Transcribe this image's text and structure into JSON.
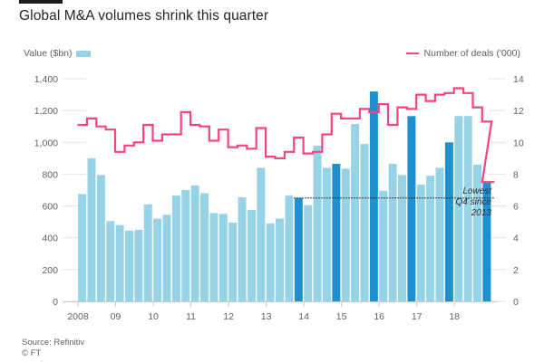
{
  "header": {
    "title": "Global M&A volumes shrink this quarter"
  },
  "legend": {
    "bars_label": "Value ($bn)",
    "line_label": "Number of deals ('000)"
  },
  "footer": {
    "source": "Source: Refinitiv",
    "copyright": "© FT"
  },
  "colors": {
    "bar_light": "#96d3e7",
    "bar_dark": "#1e8fcf",
    "line": "#f5447e",
    "grid": "#e9e0d8",
    "text": "#66605c"
  },
  "chart_data": {
    "type": "bar+line",
    "title": "Global M&A volumes shrink this quarter",
    "xlabel": "",
    "ylabel_left": "Value ($bn)",
    "ylabel_right": "Number of deals ('000)",
    "ylim_left": [
      0,
      1400
    ],
    "ylim_right": [
      0,
      14
    ],
    "yticks_left": [
      "0",
      "200",
      "400",
      "600",
      "800",
      "1,000",
      "1,200",
      "1,400"
    ],
    "yticks_left_values": [
      0,
      200,
      400,
      600,
      800,
      1000,
      1200,
      1400
    ],
    "yticks_right": [
      "0",
      "2",
      "4",
      "6",
      "8",
      "10",
      "12",
      "14"
    ],
    "yticks_right_values": [
      0,
      2,
      4,
      6,
      8,
      10,
      12,
      14
    ],
    "xtick_labels": [
      "2008",
      "09",
      "10",
      "11",
      "12",
      "13",
      "14",
      "15",
      "16",
      "17",
      "18"
    ],
    "grid": true,
    "legend_placement": "top",
    "categories": [
      "2008 Q1",
      "2008 Q2",
      "2008 Q3",
      "2008 Q4",
      "2009 Q1",
      "2009 Q2",
      "2009 Q3",
      "2009 Q4",
      "2010 Q1",
      "2010 Q2",
      "2010 Q3",
      "2010 Q4",
      "2011 Q1",
      "2011 Q2",
      "2011 Q3",
      "2011 Q4",
      "2012 Q1",
      "2012 Q2",
      "2012 Q3",
      "2012 Q4",
      "2013 Q1",
      "2013 Q2",
      "2013 Q3",
      "2013 Q4",
      "2014 Q1",
      "2014 Q2",
      "2014 Q3",
      "2014 Q4",
      "2015 Q1",
      "2015 Q2",
      "2015 Q3",
      "2015 Q4",
      "2016 Q1",
      "2016 Q2",
      "2016 Q3",
      "2016 Q4",
      "2017 Q1",
      "2017 Q2",
      "2017 Q3",
      "2017 Q4",
      "2018 Q1",
      "2018 Q2",
      "2018 Q3",
      "2018 Q4"
    ],
    "series": [
      {
        "name": "Value ($bn)",
        "type": "bar",
        "axis": "left",
        "values": [
          675,
          900,
          795,
          505,
          480,
          445,
          450,
          610,
          520,
          545,
          665,
          700,
          730,
          680,
          555,
          550,
          495,
          655,
          575,
          840,
          490,
          520,
          665,
          650,
          605,
          980,
          840,
          865,
          835,
          1115,
          990,
          1320,
          695,
          865,
          795,
          1165,
          735,
          790,
          840,
          1000,
          1165,
          1165,
          860,
          745
        ],
        "highlighted": [
          false,
          false,
          false,
          false,
          false,
          false,
          false,
          false,
          false,
          false,
          false,
          false,
          false,
          false,
          false,
          false,
          false,
          false,
          false,
          false,
          false,
          false,
          false,
          true,
          false,
          false,
          false,
          true,
          false,
          false,
          false,
          true,
          false,
          false,
          false,
          true,
          false,
          false,
          false,
          true,
          false,
          false,
          false,
          true
        ]
      },
      {
        "name": "Number of deals ('000)",
        "type": "line",
        "step": true,
        "axis": "right",
        "values": [
          11.1,
          11.5,
          11.0,
          10.8,
          9.4,
          9.8,
          10.0,
          11.1,
          10.1,
          10.5,
          10.5,
          11.9,
          11.1,
          11.0,
          10.1,
          10.8,
          9.7,
          9.8,
          9.6,
          10.9,
          9.1,
          9.0,
          9.4,
          10.3,
          9.3,
          9.4,
          10.5,
          11.8,
          11.5,
          11.5,
          12.1,
          11.9,
          12.4,
          11.1,
          12.2,
          12.1,
          13.0,
          12.6,
          13.0,
          13.1,
          13.4,
          13.1,
          12.2,
          11.3
        ],
        "final_value": 7.5
      }
    ],
    "reference_line": {
      "value": 650,
      "axis": "left",
      "from_category": "2013 Q4",
      "style": "dotted"
    },
    "annotations": [
      {
        "text_lines": [
          "Lowest",
          "Q4 since",
          "2013"
        ],
        "target": "2018 Q4"
      }
    ]
  }
}
